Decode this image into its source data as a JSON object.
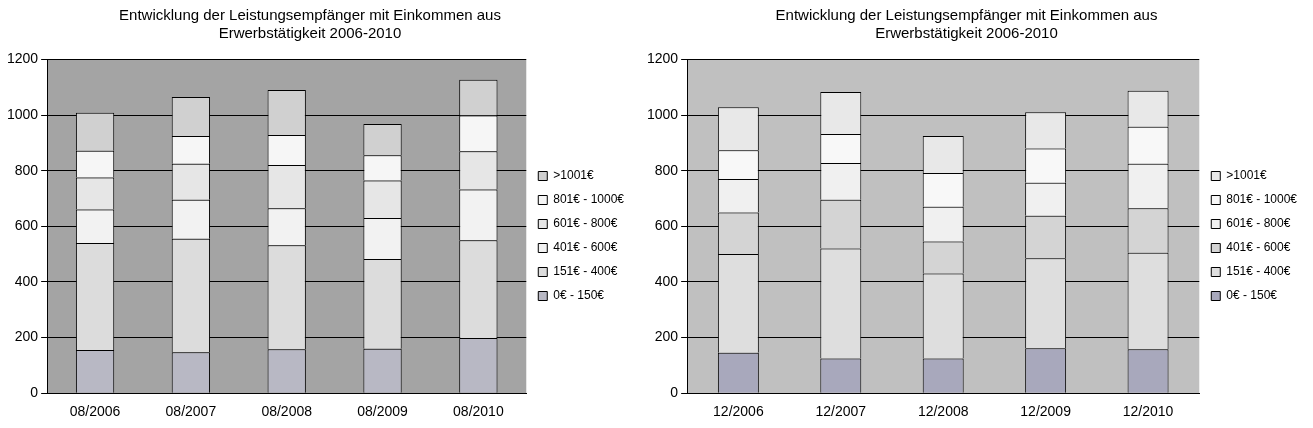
{
  "chart_data": [
    {
      "type": "bar",
      "title": "Entwicklung der Leistungsempfänger mit Einkommen aus Erwerbstätigkeit 2006-2010",
      "stacked": true,
      "legend": "right",
      "grid": "y",
      "categories": [
        "08/2006",
        "08/2007",
        "08/2008",
        "08/2009",
        "08/2010"
      ],
      "ylim": [
        0,
        1200
      ],
      "yticks": [
        0,
        200,
        400,
        600,
        800,
        1000,
        1200
      ],
      "series": [
        {
          "name": "0€ - 150€",
          "color": "#b8b8c4",
          "values": [
            155,
            147,
            158,
            160,
            198
          ]
        },
        {
          "name": "151€ - 400€",
          "color": "#dcdcdc",
          "values": [
            385,
            408,
            374,
            322,
            352
          ]
        },
        {
          "name": "401€ - 600€",
          "color": "#f2f2f2",
          "values": [
            120,
            140,
            133,
            148,
            182
          ]
        },
        {
          "name": "601€ - 800€",
          "color": "#e6e6e6",
          "values": [
            115,
            130,
            155,
            135,
            138
          ]
        },
        {
          "name": "801€ - 1000€",
          "color": "#f6f6f6",
          "values": [
            97,
            100,
            108,
            90,
            128
          ]
        },
        {
          "name": ">1001€",
          "color": "#d0d0d0",
          "values": [
            136,
            140,
            162,
            113,
            129
          ]
        }
      ]
    },
    {
      "type": "bar",
      "title": "Entwicklung der Leistungsempfänger mit Einkommen aus Erwerbstätigkeit 2006-2010",
      "stacked": true,
      "legend": "right",
      "grid": "y",
      "categories": [
        "12/2006",
        "12/2007",
        "12/2008",
        "12/2009",
        "12/2010"
      ],
      "ylim": [
        0,
        1200
      ],
      "yticks": [
        0,
        200,
        400,
        600,
        800,
        1000,
        1200
      ],
      "series": [
        {
          "name": "0€ - 150€",
          "color": "#a8a8bc",
          "values": [
            145,
            125,
            125,
            162,
            158
          ]
        },
        {
          "name": "151€ - 400€",
          "color": "#dedede",
          "values": [
            355,
            395,
            305,
            323,
            347
          ]
        },
        {
          "name": "401€ - 600€",
          "color": "#d4d4d4",
          "values": [
            150,
            175,
            115,
            153,
            160
          ]
        },
        {
          "name": "601€ - 800€",
          "color": "#f0f0f0",
          "values": [
            120,
            133,
            125,
            119,
            160
          ]
        },
        {
          "name": "801€ - 1000€",
          "color": "#f8f8f8",
          "values": [
            103,
            104,
            122,
            123,
            133
          ]
        },
        {
          "name": ">1001€",
          "color": "#e8e8e8",
          "values": [
            155,
            151,
            133,
            130,
            129
          ]
        }
      ]
    }
  ]
}
